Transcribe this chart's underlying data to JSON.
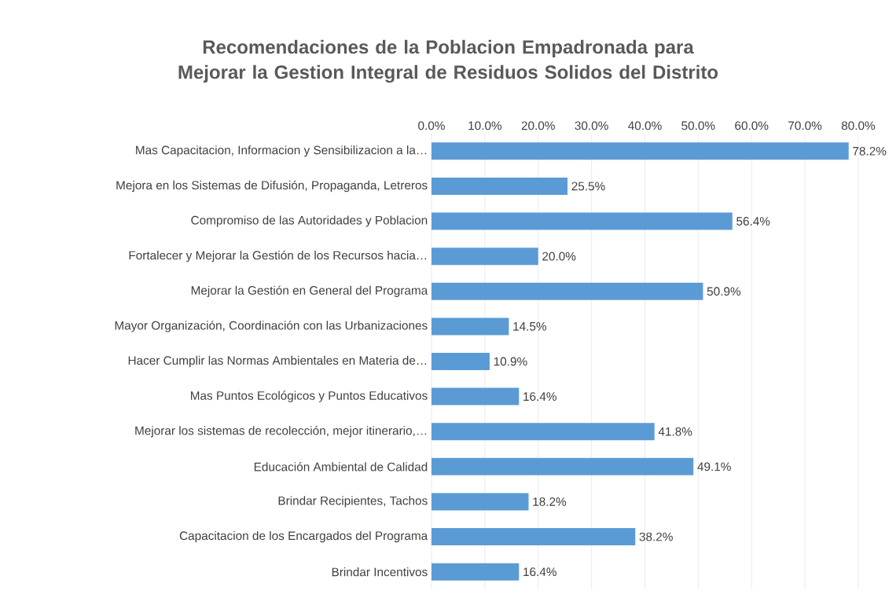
{
  "chart_data": {
    "type": "bar",
    "orientation": "horizontal",
    "title": "Recomendaciones de la Poblacion Empadronada para Mejorar la Gestion Integral de Residuos Solidos del Distrito",
    "categories": [
      "Mas Capacitacion, Informacion y Sensibilizacion a la…",
      "Mejora en los Sistemas de Difusión, Propaganda, Letreros",
      "Compromiso de las Autoridades y Poblacion",
      "Fortalecer y Mejorar la Gestión de los Recursos hacia…",
      "Mejorar la Gestión en General del Programa",
      "Mayor Organización, Coordinación con las Urbanizaciones",
      "Hacer Cumplir las Normas Ambientales en Materia de…",
      "Mas Puntos Ecológicos y Puntos Educativos",
      "Mejorar los sistemas de recolección, mejor itinerario,…",
      "Educación Ambiental de Calidad",
      "Brindar Recipientes, Tachos",
      "Capacitacion de los Encargados del Programa",
      "Brindar Incentivos"
    ],
    "values": [
      78.2,
      25.5,
      56.4,
      20.0,
      50.9,
      14.5,
      10.9,
      16.4,
      41.8,
      49.1,
      18.2,
      38.2,
      16.4
    ],
    "value_labels": [
      "78.2%",
      "25.5%",
      "56.4%",
      "20.0%",
      "50.9%",
      "14.5%",
      "10.9%",
      "16.4%",
      "41.8%",
      "49.1%",
      "18.2%",
      "38.2%",
      "16.4%"
    ],
    "color": "#5b9bd5",
    "xlim": [
      0,
      80
    ],
    "xticks": [
      {
        "value": 0,
        "label": "0.0%"
      },
      {
        "value": 10,
        "label": "10.0%"
      },
      {
        "value": 20,
        "label": "20.0%"
      },
      {
        "value": 30,
        "label": "30.0%"
      },
      {
        "value": 40,
        "label": "40.0%"
      },
      {
        "value": 50,
        "label": "50.0%"
      },
      {
        "value": 60,
        "label": "60.0%"
      },
      {
        "value": 70,
        "label": "70.0%"
      },
      {
        "value": 80,
        "label": "80.0%"
      }
    ],
    "grid": "x"
  }
}
